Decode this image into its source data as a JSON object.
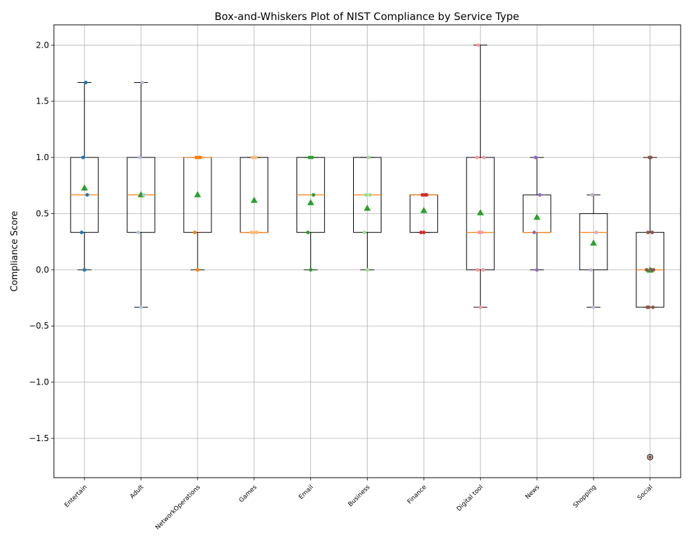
{
  "chart_data": {
    "type": "box",
    "title": "Box-and-Whiskers Plot of NIST Compliance by Service Type",
    "xlabel": "",
    "ylabel": "Compliance Score",
    "ylim": [
      -1.85,
      2.18
    ],
    "yticks": [
      -1.5,
      -1.0,
      -0.5,
      0.0,
      0.5,
      1.0,
      1.5,
      2.0
    ],
    "ytick_labels": [
      "−1.5",
      "−1.0",
      "−0.5",
      "0.0",
      "0.5",
      "1.0",
      "1.5",
      "2.0"
    ],
    "grid": true,
    "colors": {
      "median": "#ff7f0e",
      "mean_marker": "#2ca02c",
      "box": "#000000",
      "grid": "#b0b0b0"
    },
    "categories": [
      "Entertain",
      "Adult",
      "NetworkOperations",
      "Games",
      "Email",
      "Business",
      "Finance",
      "Digital tool",
      "News",
      "Shopping",
      "Social"
    ],
    "boxes": [
      {
        "category": "Entertain",
        "whisker_low": 0.0,
        "q1": 0.333,
        "median": 0.667,
        "q3": 1.0,
        "whisker_high": 1.667,
        "mean": 0.73,
        "outliers": [],
        "point_color": "#1f77b4",
        "points": [
          0.0,
          0.333,
          0.667,
          1.0,
          1.667
        ]
      },
      {
        "category": "Adult",
        "whisker_low": -0.333,
        "q1": 0.333,
        "median": 0.667,
        "q3": 1.0,
        "whisker_high": 1.667,
        "mean": 0.67,
        "outliers": [],
        "point_color": "#aec7e8",
        "points": [
          -0.333,
          0.333,
          0.667,
          1.0,
          1.667
        ]
      },
      {
        "category": "NetworkOperations",
        "whisker_low": 0.0,
        "q1": 0.333,
        "median": 1.0,
        "q3": 1.0,
        "whisker_high": 1.0,
        "mean": 0.67,
        "outliers": [],
        "point_color": "#ff7f0e",
        "points": [
          0.0,
          0.333,
          1.0,
          1.0,
          1.0
        ]
      },
      {
        "category": "Games",
        "whisker_low": 0.333,
        "q1": 0.333,
        "median": 0.333,
        "q3": 1.0,
        "whisker_high": 1.0,
        "mean": 0.62,
        "outliers": [],
        "point_color": "#ffbb78",
        "points": [
          0.333,
          0.333,
          0.333,
          1.0,
          1.0
        ]
      },
      {
        "category": "Email",
        "whisker_low": 0.0,
        "q1": 0.333,
        "median": 0.667,
        "q3": 1.0,
        "whisker_high": 1.0,
        "mean": 0.6,
        "outliers": [],
        "point_color": "#2ca02c",
        "points": [
          0.0,
          0.333,
          0.667,
          1.0,
          1.0
        ]
      },
      {
        "category": "Business",
        "whisker_low": 0.0,
        "q1": 0.333,
        "median": 0.667,
        "q3": 1.0,
        "whisker_high": 1.0,
        "mean": 0.55,
        "outliers": [],
        "point_color": "#98df8a",
        "points": [
          0.0,
          0.333,
          0.667,
          0.667,
          1.0
        ]
      },
      {
        "category": "Finance",
        "whisker_low": 0.333,
        "q1": 0.333,
        "median": 0.667,
        "q3": 0.667,
        "whisker_high": 0.667,
        "mean": 0.53,
        "outliers": [],
        "point_color": "#d62728",
        "points": [
          0.333,
          0.333,
          0.667,
          0.667,
          0.667
        ]
      },
      {
        "category": "Digital tool",
        "whisker_low": -0.333,
        "q1": 0.0,
        "median": 0.333,
        "q3": 1.0,
        "whisker_high": 2.0,
        "mean": 0.51,
        "outliers": [],
        "point_color": "#ff9896",
        "points": [
          -0.333,
          0.0,
          0.0,
          0.333,
          0.333,
          1.0,
          1.0,
          2.0
        ]
      },
      {
        "category": "News",
        "whisker_low": 0.0,
        "q1": 0.333,
        "median": 0.333,
        "q3": 0.667,
        "whisker_high": 1.0,
        "mean": 0.47,
        "outliers": [],
        "point_color": "#9467bd",
        "points": [
          0.0,
          0.333,
          0.667,
          1.0
        ]
      },
      {
        "category": "Shopping",
        "whisker_low": -0.333,
        "q1": 0.0,
        "median": 0.333,
        "q3": 0.5,
        "whisker_high": 0.667,
        "mean": 0.24,
        "outliers": [],
        "point_color": "#c5b0d5",
        "points": [
          -0.333,
          0.0,
          0.333,
          0.667
        ]
      },
      {
        "category": "Social",
        "whisker_low": -0.333,
        "q1": -0.333,
        "median": 0.0,
        "q3": 0.333,
        "whisker_high": 1.0,
        "mean": 0.0,
        "outliers": [
          -1.667
        ],
        "point_color": "#8c564b",
        "points": [
          -1.667,
          -0.333,
          -0.333,
          -0.333,
          0.0,
          0.0,
          0.0,
          0.333,
          0.333,
          1.0,
          1.0
        ]
      }
    ]
  }
}
